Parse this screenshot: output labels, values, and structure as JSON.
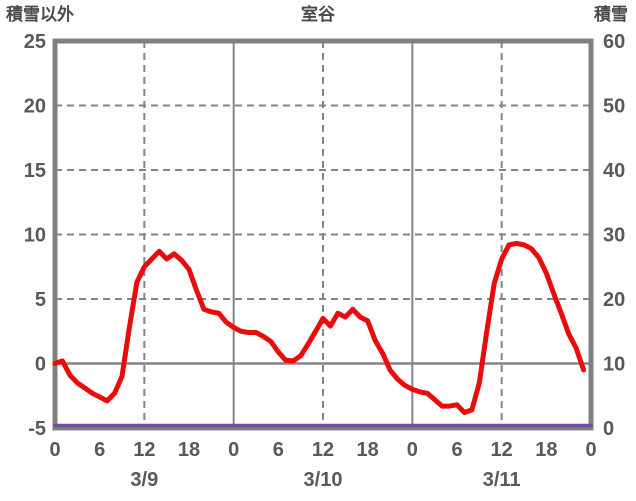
{
  "chart_data": {
    "type": "line",
    "title": "室谷",
    "left_axis": {
      "title": "積雪以外",
      "min": -5,
      "max": 25,
      "ticks": [
        "25",
        "20",
        "15",
        "10",
        "5",
        "0",
        "-5"
      ]
    },
    "right_axis": {
      "title": "積雪",
      "min": 0,
      "max": 60,
      "ticks": [
        "60",
        "50",
        "40",
        "30",
        "20",
        "10",
        "0"
      ]
    },
    "x_axis": {
      "hours_total": 72,
      "tick_step_hours": 6,
      "tick_labels": [
        "0",
        "6",
        "12",
        "18",
        "0",
        "6",
        "12",
        "18",
        "0",
        "6",
        "12",
        "18",
        "0"
      ],
      "date_labels": [
        "3/9",
        "3/10",
        "3/11"
      ],
      "date_label_hours": [
        12,
        36,
        60
      ]
    },
    "grid": {
      "vertical_dashed_at_hours": [
        12,
        36,
        60
      ],
      "vertical_solid_at_hours": [
        24,
        48
      ],
      "horizontal_dashed_at_values": [
        20,
        15,
        10,
        5
      ],
      "horizontal_solid_at_values": [
        0
      ]
    },
    "series": [
      {
        "name": "積雪以外",
        "axis": "left",
        "color": "#e80c0c",
        "start_hour": 0,
        "values": [
          0.0,
          0.2,
          -0.9,
          -1.5,
          -1.9,
          -2.3,
          -2.6,
          -2.9,
          -2.3,
          -1.0,
          2.8,
          6.3,
          7.5,
          8.1,
          8.7,
          8.1,
          8.5,
          8.0,
          7.3,
          5.7,
          4.2,
          4.0,
          3.9,
          3.2,
          2.8,
          2.5,
          2.4,
          2.4,
          2.1,
          1.7,
          0.9,
          0.25,
          0.2,
          0.6,
          1.5,
          2.5,
          3.5,
          2.9,
          3.9,
          3.6,
          4.2,
          3.6,
          3.3,
          1.8,
          0.8,
          -0.5,
          -1.2,
          -1.7,
          -2.0,
          -2.2,
          -2.3,
          -2.8,
          -3.3,
          -3.3,
          -3.2,
          -3.8,
          -3.6,
          -1.5,
          2.5,
          6.2,
          8.1,
          9.2,
          9.3,
          9.2,
          8.9,
          8.2,
          7.0,
          5.4,
          3.9,
          2.3,
          1.2,
          -0.5
        ]
      },
      {
        "name": "積雪",
        "axis": "right",
        "color": "#6f4aa2",
        "start_hour": 0,
        "values": [
          0,
          0,
          0,
          0,
          0,
          0,
          0,
          0,
          0,
          0,
          0,
          0,
          0,
          0,
          0,
          0,
          0,
          0,
          0,
          0,
          0,
          0,
          0,
          0,
          0,
          0,
          0,
          0,
          0,
          0,
          0,
          0,
          0,
          0,
          0,
          0,
          0,
          0,
          0,
          0,
          0,
          0,
          0,
          0,
          0,
          0,
          0,
          0,
          0,
          0,
          0,
          0,
          0,
          0,
          0,
          0,
          0,
          0,
          0,
          0,
          0,
          0,
          0,
          0,
          0,
          0,
          0,
          0,
          0,
          0,
          0,
          0,
          0
        ]
      }
    ],
    "colors": {
      "temperature_line": "#e80c0c",
      "snow_line": "#6f4aa2",
      "grid": "#848484",
      "axis_frame": "#808080",
      "tick_text": "#595959",
      "header_text": "#4a4a4a",
      "background": "#ffffff"
    }
  }
}
